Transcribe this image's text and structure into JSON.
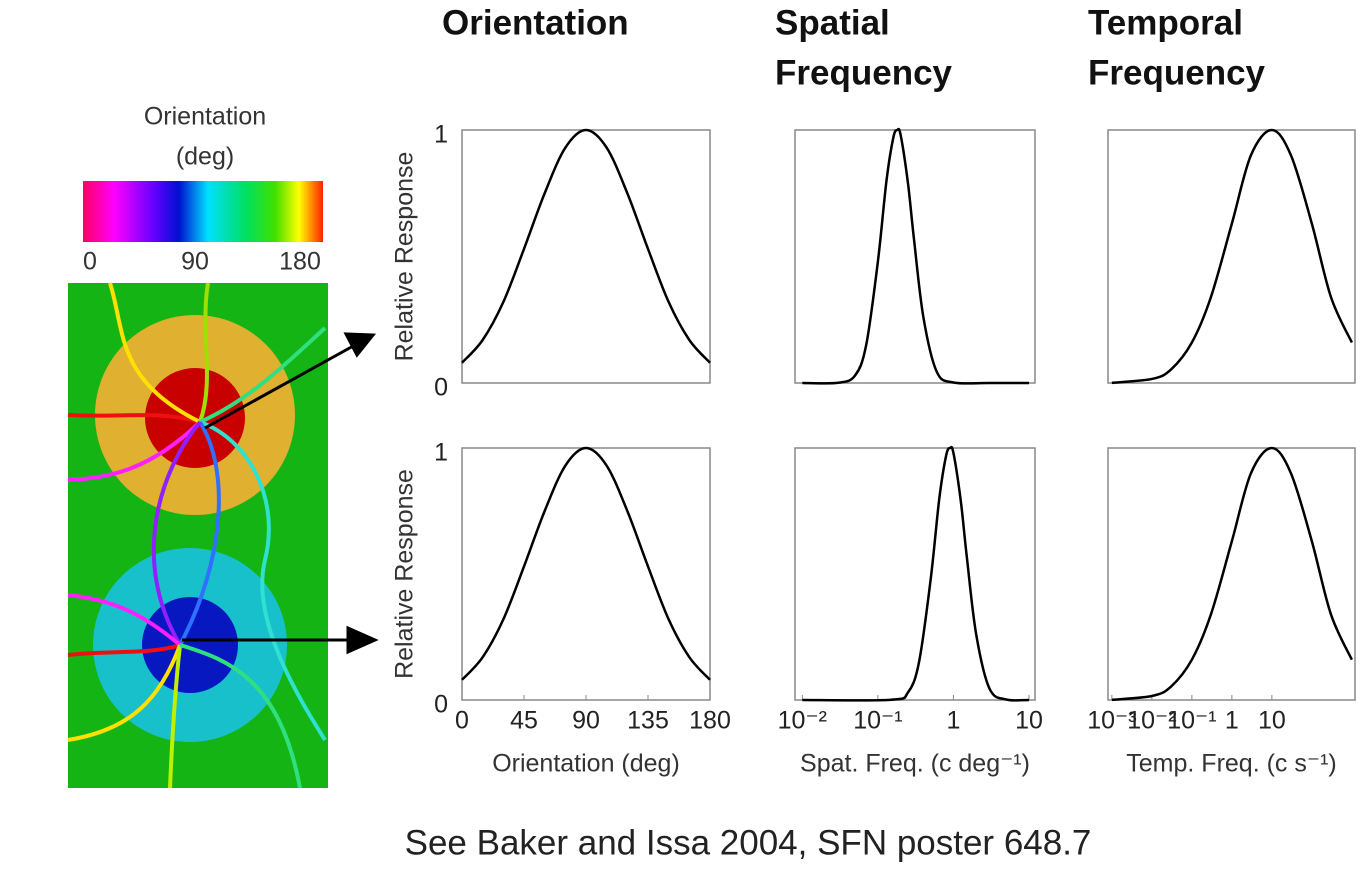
{
  "colorbar": {
    "title_lines": [
      "Orientation",
      "(deg)"
    ],
    "lim": [
      0,
      180
    ],
    "ticks": [
      0,
      90,
      180
    ]
  },
  "chart_data": [
    {
      "type": "line",
      "title_lines": [
        "Orientation"
      ],
      "ylabel": "Relative Response",
      "color": "#000000",
      "x": [
        0,
        15,
        30,
        45,
        60,
        75,
        90,
        105,
        120,
        135,
        150,
        165,
        180
      ],
      "values": [
        0.08,
        0.17,
        0.32,
        0.53,
        0.75,
        0.93,
        1,
        0.93,
        0.75,
        0.53,
        0.32,
        0.17,
        0.08
      ],
      "xlim": [
        0,
        180
      ],
      "ylim": [
        0,
        1
      ],
      "yticks": [
        0,
        1
      ]
    },
    {
      "type": "line",
      "title_lines": [
        "Spatial",
        "Frequency"
      ],
      "color": "#000000",
      "xscale": "log",
      "x": [
        0.01,
        0.03,
        0.05,
        0.07,
        0.1,
        0.13,
        0.16,
        0.18,
        0.2,
        0.25,
        0.3,
        0.4,
        0.6,
        1,
        3,
        10
      ],
      "values": [
        0,
        0.001,
        0.03,
        0.15,
        0.48,
        0.8,
        0.97,
        1,
        0.98,
        0.79,
        0.57,
        0.26,
        0.045,
        0.002,
        0,
        0
      ],
      "xlim": [
        0.008,
        12
      ],
      "ylim": [
        0,
        1
      ]
    },
    {
      "type": "line",
      "title_lines": [
        "Temporal",
        "Frequency"
      ],
      "color": "#000000",
      "xscale": "log",
      "x": [
        0.001,
        0.01,
        0.03,
        0.1,
        0.3,
        1,
        3,
        10,
        30,
        100,
        300,
        1000
      ],
      "values": [
        0.0006,
        0.016,
        0.053,
        0.16,
        0.34,
        0.63,
        0.9,
        1,
        0.9,
        0.63,
        0.34,
        0.16
      ],
      "xlim": [
        0.0008,
        1200
      ],
      "ylim": [
        0,
        1
      ]
    },
    {
      "type": "line",
      "ylabel": "Relative Response",
      "xlabel": "Orientation (deg)",
      "color": "#000000",
      "x": [
        0,
        15,
        30,
        45,
        60,
        75,
        90,
        105,
        120,
        135,
        150,
        165,
        180
      ],
      "values": [
        0.08,
        0.17,
        0.32,
        0.53,
        0.75,
        0.93,
        1,
        0.93,
        0.75,
        0.53,
        0.32,
        0.17,
        0.08
      ],
      "xlim": [
        0,
        180
      ],
      "ylim": [
        0,
        1
      ],
      "yticks": [
        0,
        1
      ],
      "xticks": [
        0,
        45,
        90,
        135,
        180
      ]
    },
    {
      "type": "line",
      "xlabel": "Spat. Freq. (c deg⁻¹)",
      "color": "#000000",
      "xscale": "log",
      "x": [
        0.01,
        0.15,
        0.25,
        0.35,
        0.5,
        0.65,
        0.8,
        0.9,
        1,
        1.25,
        1.5,
        2,
        3,
        5,
        10
      ],
      "values": [
        0,
        0.001,
        0.03,
        0.15,
        0.48,
        0.8,
        0.97,
        1,
        0.98,
        0.79,
        0.57,
        0.26,
        0.045,
        0.002,
        0
      ],
      "xlim": [
        0.008,
        12
      ],
      "ylim": [
        0,
        1
      ],
      "xticks": [
        {
          "value": 0.01,
          "label": "10⁻²"
        },
        {
          "value": 0.1,
          "label": "10⁻¹"
        },
        1,
        10
      ]
    },
    {
      "type": "line",
      "xlabel": "Temp. Freq. (c s⁻¹)",
      "color": "#000000",
      "xscale": "log",
      "x": [
        0.001,
        0.01,
        0.03,
        0.1,
        0.3,
        1,
        3,
        10,
        30,
        100,
        300,
        1000
      ],
      "values": [
        0.0006,
        0.016,
        0.053,
        0.16,
        0.34,
        0.63,
        0.9,
        1,
        0.9,
        0.63,
        0.34,
        0.16
      ],
      "xlim": [
        0.0008,
        1200
      ],
      "ylim": [
        0,
        1
      ],
      "xticks": [
        {
          "value": 0.001,
          "label": "10⁻³"
        },
        {
          "value": 0.01,
          "label": "10⁻²"
        },
        {
          "value": 0.1,
          "label": "10⁻¹"
        },
        1,
        10
      ]
    }
  ],
  "footer": "See Baker and Issa 2004, SFN poster 648.7"
}
